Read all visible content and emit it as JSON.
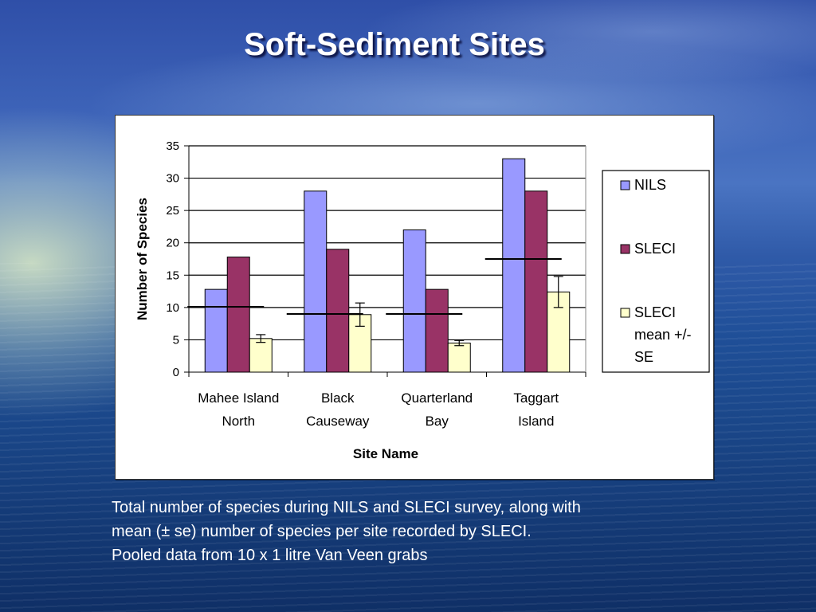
{
  "slide": {
    "title": "Soft-Sediment Sites",
    "caption_lines": [
      "Total number of species during NILS and SLECI survey, along with",
      "mean (± se) number of species per site recorded by SLECI.",
      "Pooled data from 10 x 1 litre Van Veen grabs"
    ]
  },
  "chart_data": {
    "type": "bar",
    "categories": [
      [
        "Mahee Island",
        "North"
      ],
      [
        "Black",
        "Causeway"
      ],
      [
        "Quarterland",
        "Bay"
      ],
      [
        "Taggart",
        "Island"
      ]
    ],
    "series": [
      {
        "name": "NILS",
        "values": [
          12.8,
          28,
          22,
          33
        ],
        "color": "#9999ff"
      },
      {
        "name": "SLECI",
        "values": [
          17.8,
          19,
          12.8,
          28
        ],
        "color": "#993366"
      },
      {
        "name": "SLECI mean +/- SE",
        "values": [
          5.2,
          8.9,
          4.5,
          12.4
        ],
        "errors": [
          0.6,
          1.8,
          0.4,
          2.4
        ],
        "color": "#ffffcc"
      }
    ],
    "reference_lines": [
      10.1,
      9.0,
      9.0,
      17.5
    ],
    "legend_lines": [
      [
        "NILS"
      ],
      [
        "SLECI"
      ],
      [
        "SLECI",
        "mean +/-",
        "SE"
      ]
    ],
    "xlabel": "Site Name",
    "ylabel": "Number of Species",
    "ylim": [
      0,
      35
    ],
    "yticks": [
      0,
      5,
      10,
      15,
      20,
      25,
      30,
      35
    ],
    "grid": true,
    "legend_position": "right"
  }
}
